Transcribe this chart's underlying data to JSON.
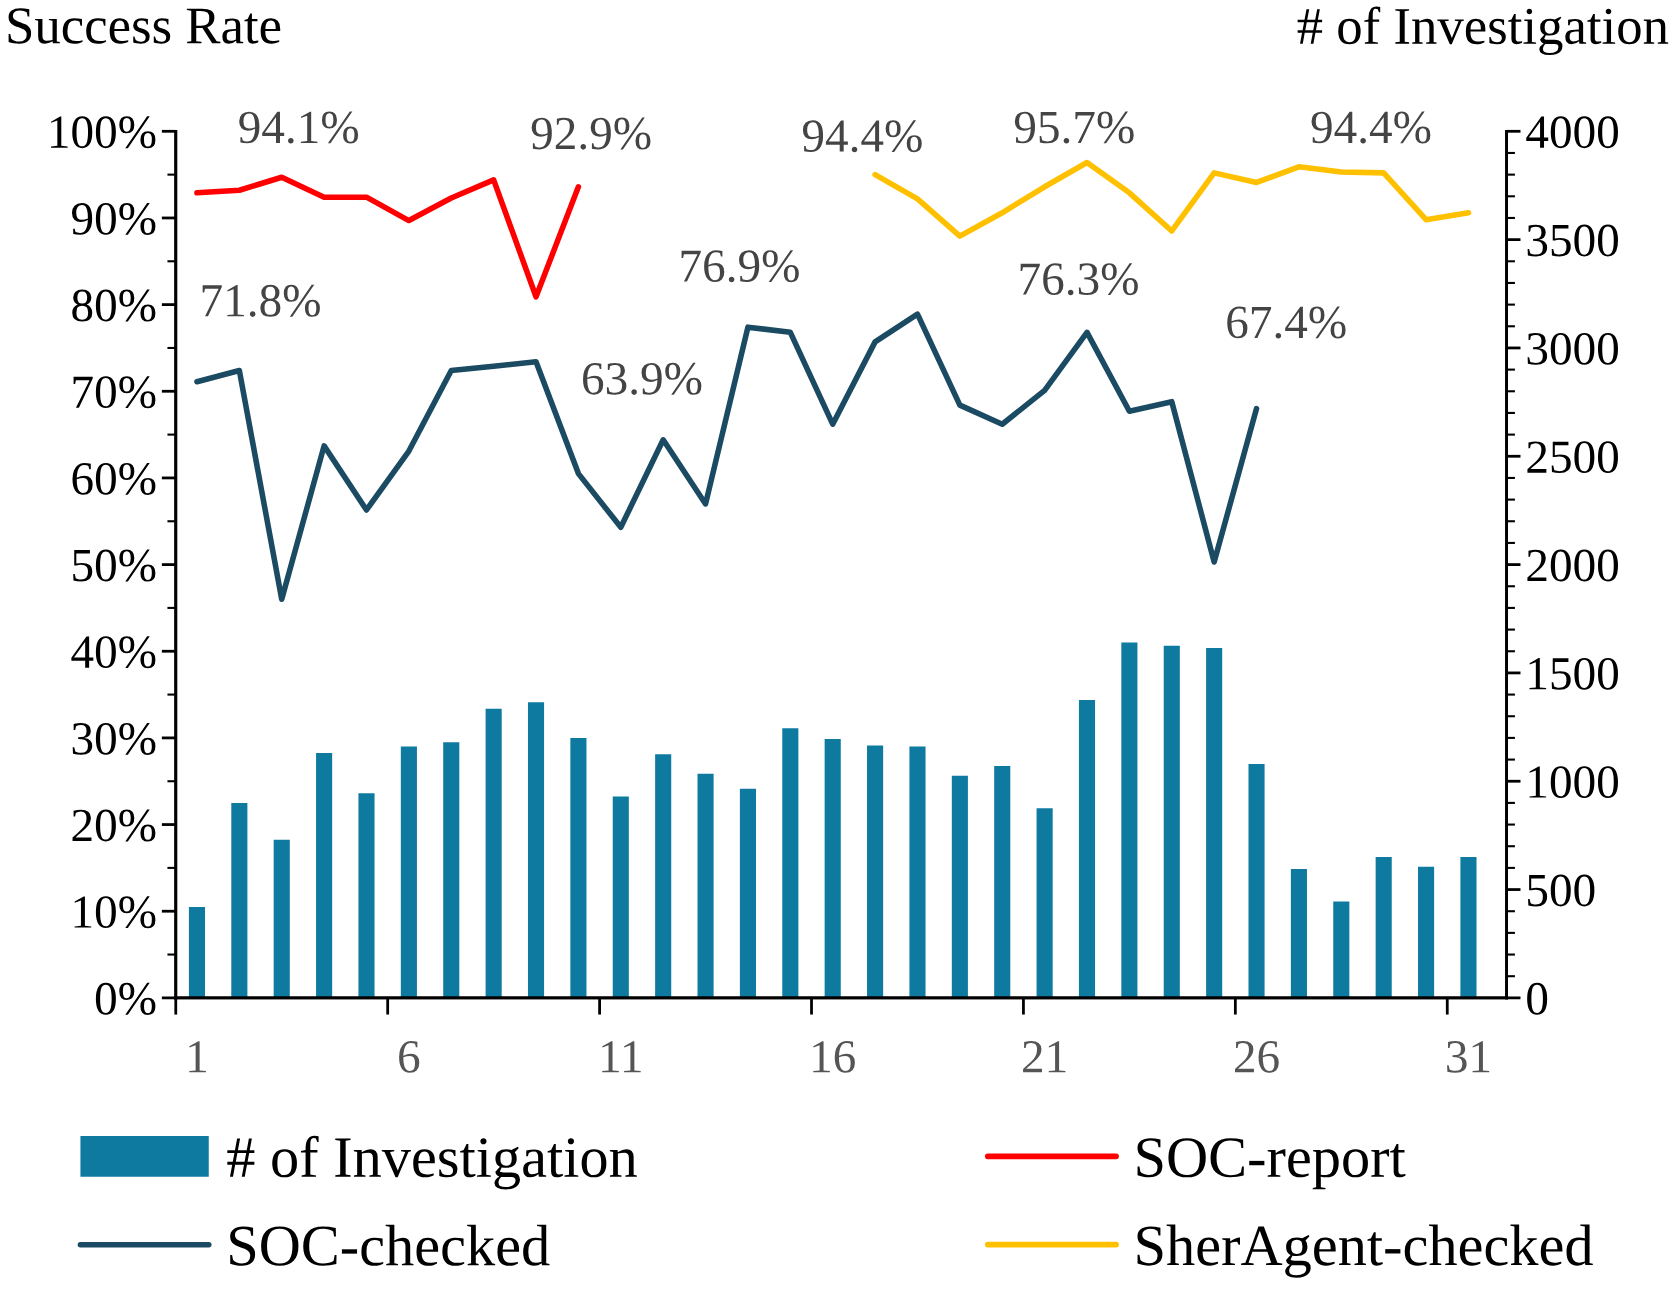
{
  "chart_data": {
    "type": "bar",
    "ylabel": "Success Rate",
    "y2label": "# of Investigation",
    "categories": [
      "1",
      null,
      null,
      null,
      null,
      "6",
      null,
      null,
      null,
      null,
      "11",
      null,
      null,
      null,
      null,
      "16",
      null,
      null,
      null,
      null,
      "21",
      null,
      null,
      null,
      null,
      "26",
      null,
      null,
      null,
      null,
      "31"
    ],
    "series": [
      {
        "name": "# of Investigation",
        "axis": "y2",
        "color": "#0e7aa0",
        "values": [
          420,
          900,
          730,
          1130,
          945,
          1160,
          1180,
          1335,
          1365,
          1200,
          930,
          1125,
          1035,
          965,
          1245,
          1195,
          1165,
          1160,
          1025,
          1070,
          875,
          1375,
          1640,
          1625,
          1615,
          1080,
          595,
          445,
          650,
          605,
          650
        ]
      },
      {
        "name": "SOC-checked",
        "type": "line",
        "color": "#1b4a63",
        "values": [
          71.1,
          72.4,
          46.0,
          63.7,
          56.3,
          63.1,
          72.4,
          72.9,
          73.4,
          60.5,
          54.3,
          64.4,
          57.0,
          77.4,
          76.8,
          66.2,
          75.7,
          78.9,
          68.4,
          66.2,
          70.1,
          76.8,
          67.7,
          68.8,
          50.3,
          68.0,
          null,
          null,
          null,
          null,
          null
        ]
      },
      {
        "name": "SOC-report",
        "type": "line",
        "color": "#ff0000",
        "values": [
          92.9,
          93.2,
          94.7,
          92.4,
          92.4,
          89.7,
          92.3,
          94.4,
          80.9,
          93.6,
          null,
          null,
          null,
          null,
          null,
          null,
          null,
          null,
          null,
          null,
          null,
          null,
          null,
          null,
          null,
          null,
          null,
          null,
          null,
          null,
          null
        ]
      },
      {
        "name": "SherAgent-checked",
        "type": "line",
        "color": "#ffc000",
        "values": [
          null,
          null,
          null,
          null,
          null,
          null,
          null,
          null,
          null,
          null,
          null,
          null,
          null,
          null,
          null,
          null,
          95.0,
          92.2,
          87.9,
          90.6,
          93.6,
          96.4,
          92.9,
          88.5,
          95.2,
          94.1,
          95.9,
          95.3,
          95.2,
          89.8,
          90.6
        ]
      }
    ],
    "ylim": [
      0,
      100
    ],
    "yticks": [
      {
        "value": 0,
        "label": "0%"
      },
      {
        "value": 10,
        "label": "10%"
      },
      {
        "value": 20,
        "label": "20%"
      },
      {
        "value": 30,
        "label": "30%"
      },
      {
        "value": 40,
        "label": "40%"
      },
      {
        "value": 50,
        "label": "50%"
      },
      {
        "value": 60,
        "label": "60%"
      },
      {
        "value": 70,
        "label": "70%"
      },
      {
        "value": 80,
        "label": "80%"
      },
      {
        "value": 90,
        "label": "90%"
      },
      {
        "value": 100,
        "label": "100%"
      }
    ],
    "y2lim": [
      0,
      4000
    ],
    "y2ticks": [
      0,
      500,
      1000,
      1500,
      2000,
      2500,
      3000,
      3500,
      4000
    ],
    "annotations": [
      "94.1%",
      "92.9%",
      "71.8%",
      "76.9%",
      "63.9%",
      "76.3%",
      "67.4%",
      "94.4%",
      "95.7%",
      "94.4%"
    ],
    "legend": "bottom",
    "grid": false,
    "line_style": "solid",
    "marker": "none"
  }
}
